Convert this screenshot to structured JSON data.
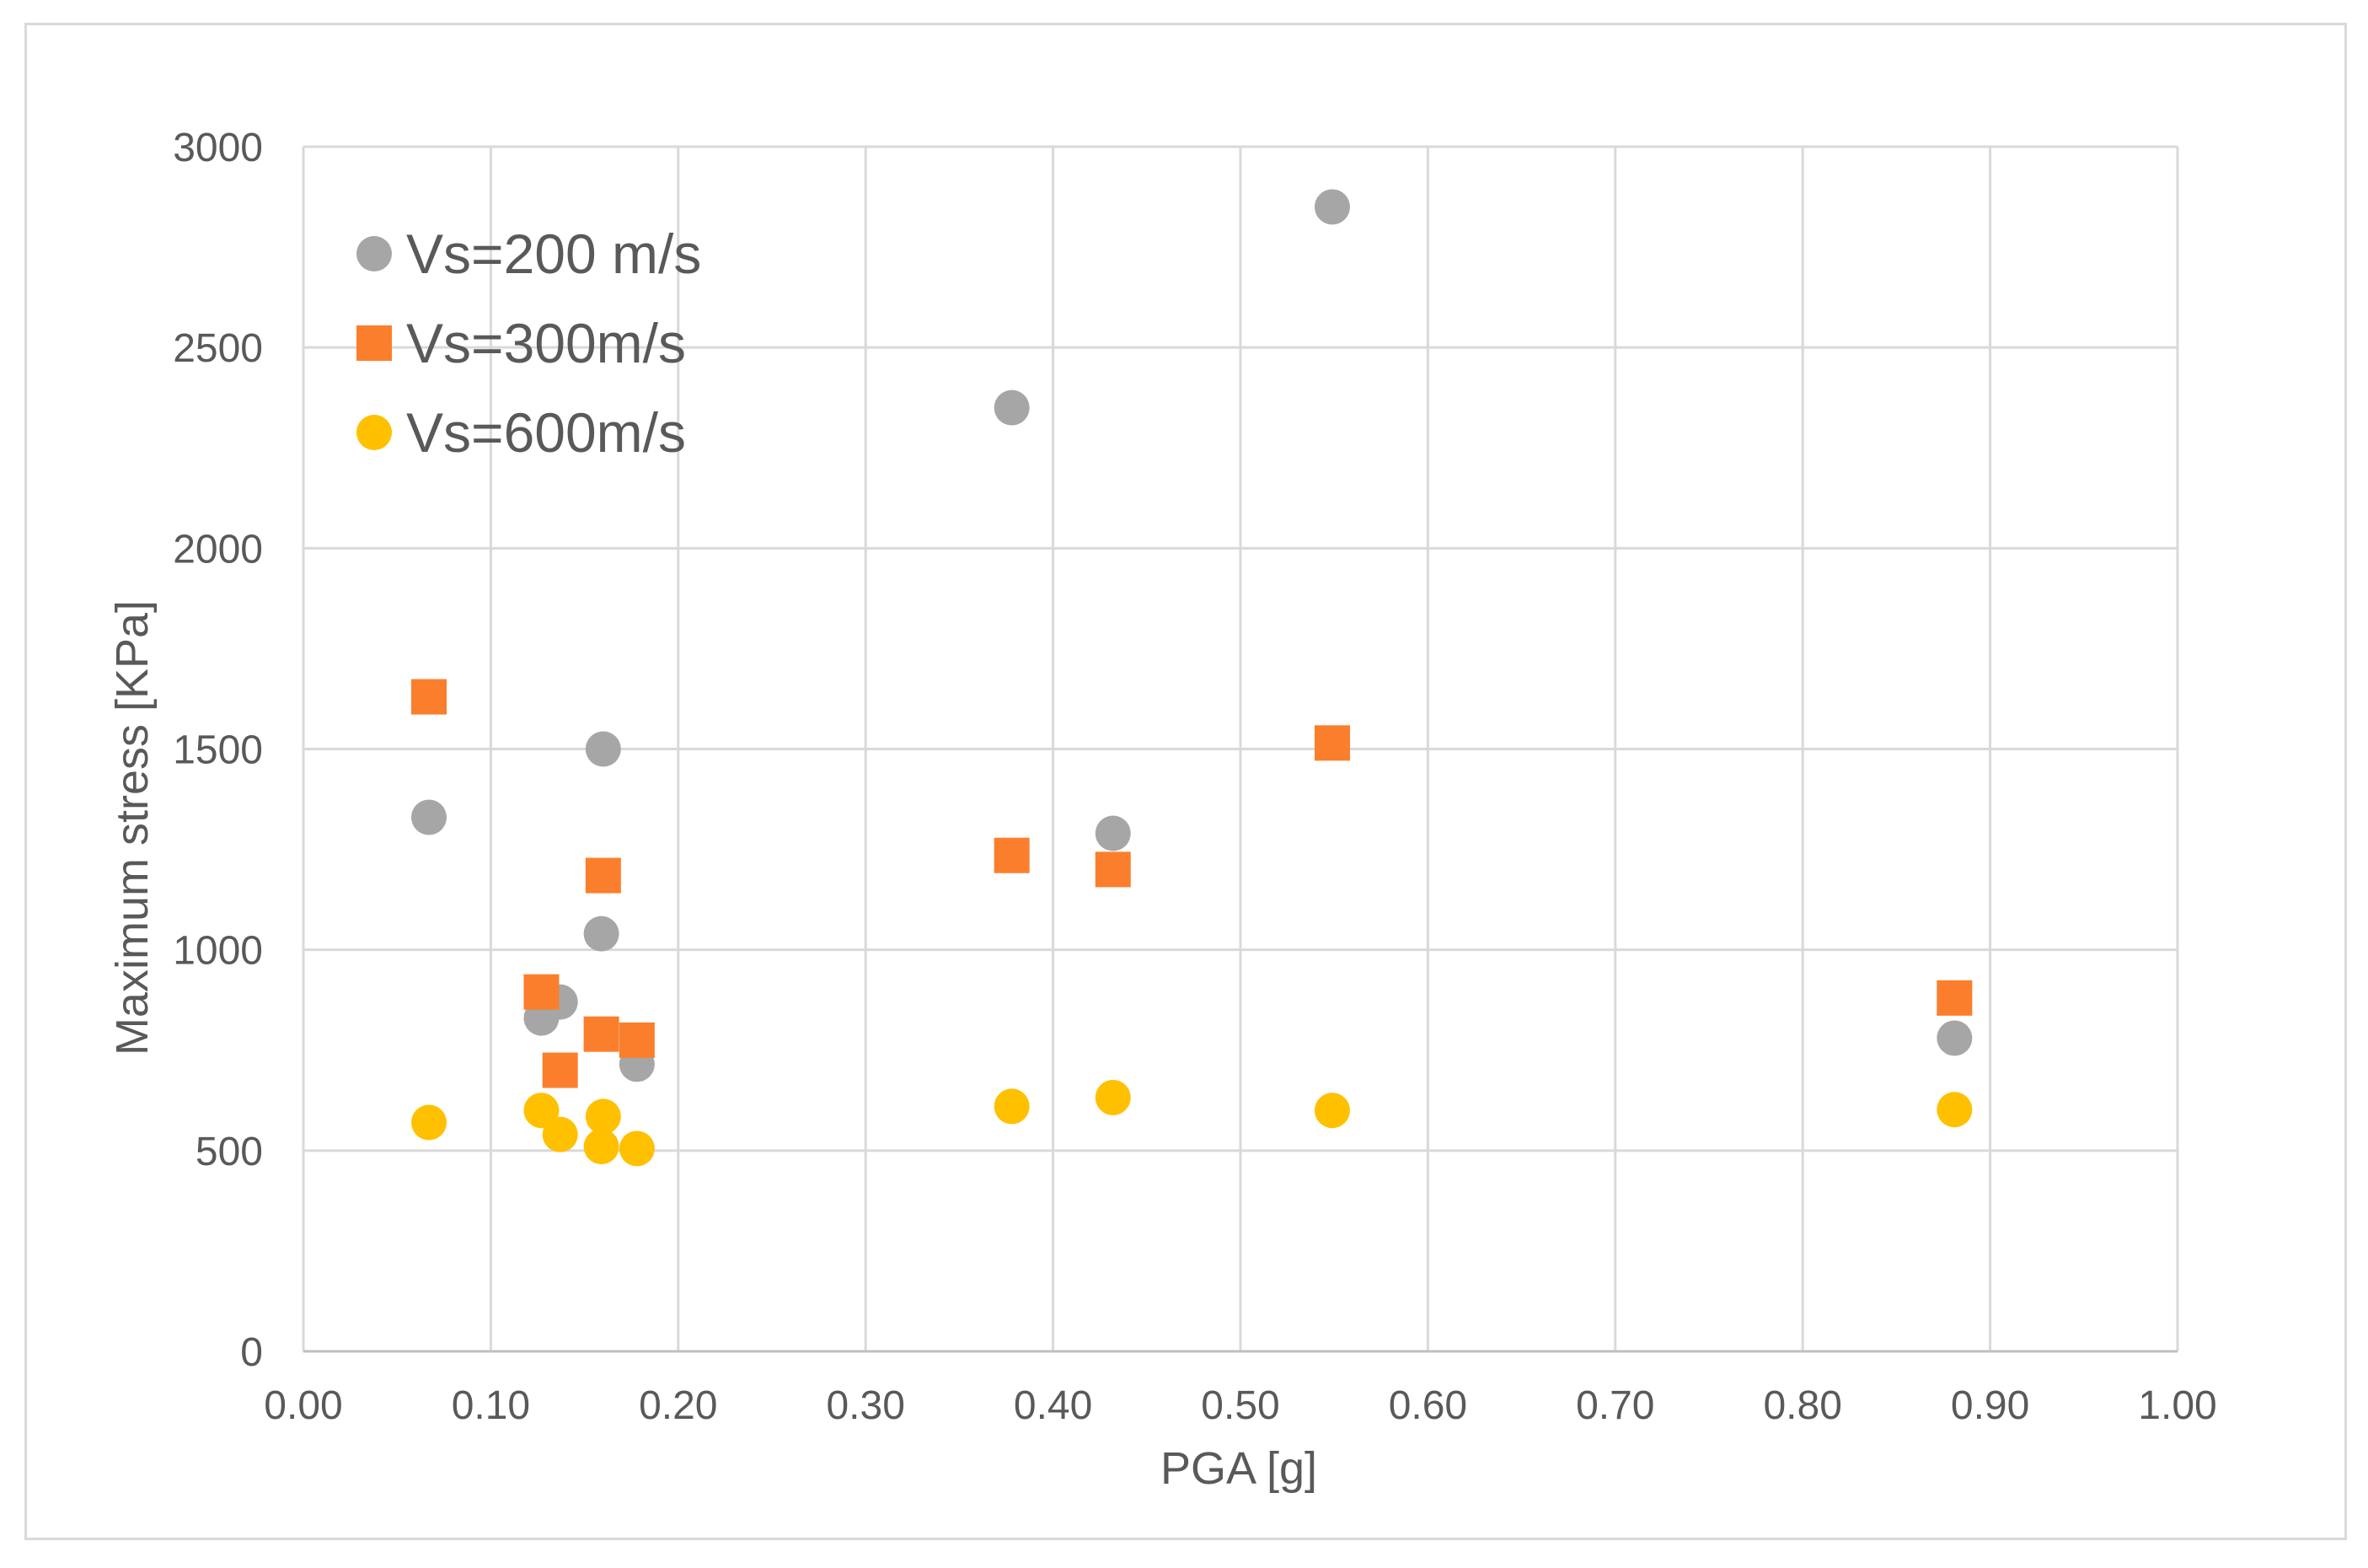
{
  "chart_data": {
    "type": "scatter",
    "title": "",
    "xlabel": "PGA [g]",
    "ylabel": "Maximum stress [KPa]",
    "xlim": [
      0,
      1
    ],
    "ylim": [
      0,
      3000
    ],
    "x_ticks": [
      "0.00",
      "0.10",
      "0.20",
      "0.30",
      "0.40",
      "0.50",
      "0.60",
      "0.70",
      "0.80",
      "0.90",
      "1.00"
    ],
    "y_ticks": [
      "0",
      "500",
      "1000",
      "1500",
      "2000",
      "2500",
      "3000"
    ],
    "grid": true,
    "legend_position": "top-left",
    "series": [
      {
        "name": "Vs=200 m/s",
        "marker": "circle",
        "color": "#a6a6a6",
        "x": [
          0.067,
          0.127,
          0.137,
          0.159,
          0.16,
          0.178,
          0.378,
          0.432,
          0.549,
          0.881
        ],
        "y": [
          1330,
          830,
          870,
          1040,
          1500,
          715,
          2350,
          1290,
          2850,
          780
        ]
      },
      {
        "name": "Vs=300m/s",
        "marker": "square",
        "color": "#fb7e2c",
        "x": [
          0.067,
          0.127,
          0.137,
          0.159,
          0.16,
          0.178,
          0.378,
          0.432,
          0.549,
          0.881
        ],
        "y": [
          1630,
          895,
          700,
          790,
          1185,
          775,
          1235,
          1200,
          1515,
          880
        ]
      },
      {
        "name": "Vs=600m/s",
        "marker": "circle",
        "color": "#ffc000",
        "x": [
          0.067,
          0.127,
          0.137,
          0.159,
          0.16,
          0.178,
          0.378,
          0.432,
          0.549,
          0.881
        ],
        "y": [
          570,
          600,
          540,
          510,
          585,
          505,
          610,
          632,
          600,
          602
        ]
      }
    ]
  }
}
